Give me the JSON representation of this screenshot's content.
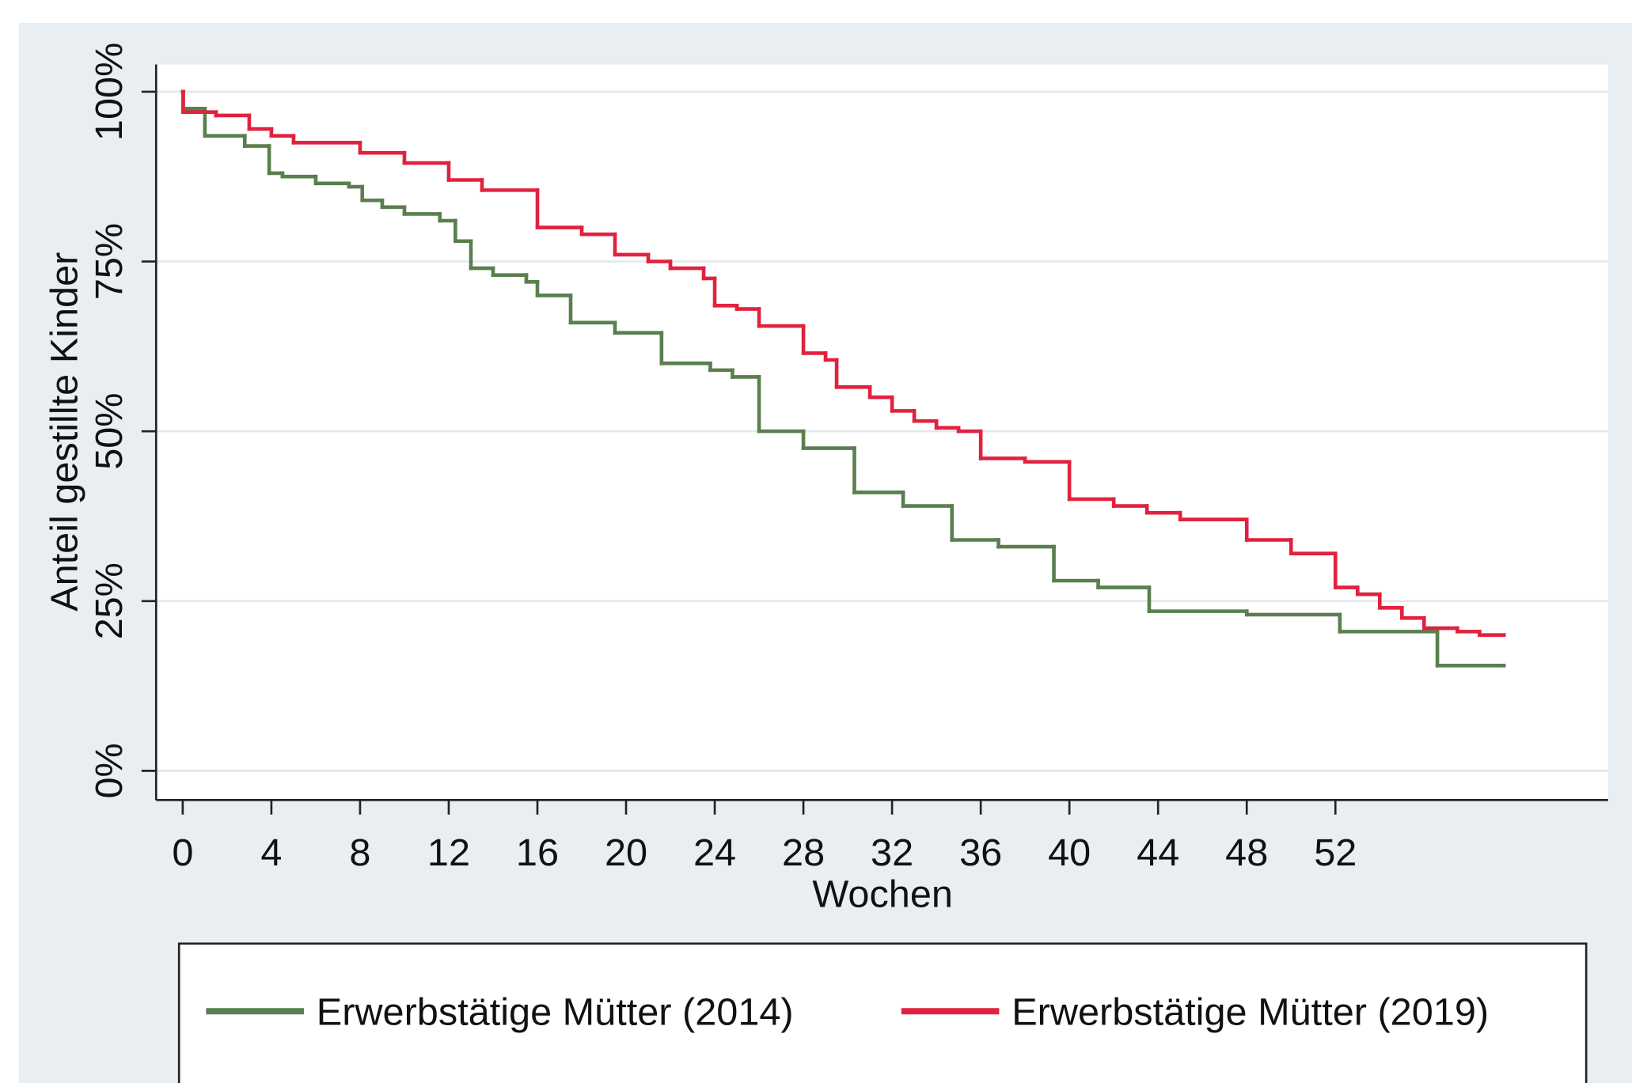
{
  "chart_data": {
    "type": "step",
    "x_label": "Wochen",
    "y_label": "Anteil gestillte Kinder",
    "xlim": [
      -1.2,
      64.3
    ],
    "ylim": [
      -4.3,
      104
    ],
    "xticks": [
      0,
      4,
      8,
      12,
      16,
      20,
      24,
      28,
      32,
      36,
      40,
      44,
      48,
      52
    ],
    "yticks": [
      {
        "value": 0,
        "label": "0%"
      },
      {
        "value": 25,
        "label": "25%"
      },
      {
        "value": 50,
        "label": "50%"
      },
      {
        "value": 75,
        "label": "75%"
      },
      {
        "value": 100,
        "label": "100%"
      }
    ],
    "grid": true,
    "legend": "bottom",
    "series": [
      {
        "name": "Erwerbstätige Mütter (2014)",
        "color": "#5a7f4e",
        "x": [
          0,
          0.02,
          1,
          2.8,
          3.9,
          4.5,
          6,
          7.5,
          8.1,
          9,
          10,
          11.6,
          12.3,
          13,
          14,
          15.5,
          16,
          17.5,
          19.5,
          21.6,
          23.8,
          24.8,
          26,
          28,
          30.3,
          32.5,
          34.7,
          36.8,
          39.3,
          41.3,
          43.6,
          48,
          52.2,
          56.6,
          59.6
        ],
        "values": [
          100,
          97.5,
          93.5,
          92,
          88,
          87.5,
          86.5,
          86,
          84,
          83,
          82,
          81,
          78,
          74,
          73,
          72,
          70,
          66,
          64.5,
          60,
          59,
          58,
          50,
          47.5,
          41,
          39,
          34,
          33,
          28,
          27,
          23.5,
          23,
          20.5,
          15.5,
          15.5
        ]
      },
      {
        "name": "Erwerbstätige Mütter (2019)",
        "color": "#e0223f",
        "x": [
          0,
          0.02,
          1.5,
          3,
          4,
          5,
          8,
          10,
          12,
          13.5,
          16,
          18,
          19.5,
          21,
          22,
          23.5,
          24,
          25,
          26,
          28,
          29,
          29.5,
          31,
          32,
          33,
          34,
          35,
          36,
          38,
          40,
          42,
          43.5,
          45,
          48,
          50,
          52,
          53,
          54,
          55,
          56,
          57.5,
          58.5,
          59.6
        ],
        "values": [
          100,
          97,
          96.5,
          94.5,
          93.5,
          92.5,
          91,
          89.5,
          87,
          85.5,
          80,
          79,
          76,
          75,
          74,
          72.5,
          68.5,
          68,
          65.5,
          61.5,
          60.5,
          56.5,
          55,
          53,
          51.5,
          50.5,
          50,
          46,
          45.5,
          40,
          39,
          38,
          37,
          34,
          32,
          27,
          26,
          24,
          22.5,
          21,
          20.5,
          20,
          20
        ]
      }
    ]
  }
}
